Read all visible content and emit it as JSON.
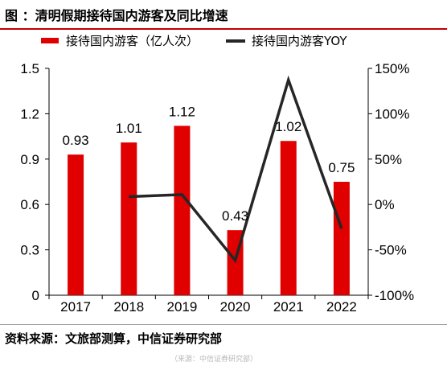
{
  "figure": {
    "title": "图 ：清明假期接待国内游客及同比增速",
    "source": "资料来源：文旅部测算，中信证券研究部",
    "watermark": "（来源：中信证券研究部）"
  },
  "colors": {
    "bar": "#e00000",
    "line": "#262626",
    "rule": "#c00000"
  },
  "chart_data": {
    "type": "bar",
    "categories": [
      "2017",
      "2018",
      "2019",
      "2020",
      "2021",
      "2022"
    ],
    "series": [
      {
        "name": "接待国内游客（亿人次）",
        "type": "bar",
        "axis": "left",
        "values": [
          0.93,
          1.01,
          1.12,
          0.43,
          1.02,
          0.75
        ],
        "labels": [
          "0.93",
          "1.01",
          "1.12",
          "0.43",
          "1.02",
          "0.75"
        ]
      },
      {
        "name": "接待国内游客YOY",
        "type": "line",
        "axis": "right",
        "values": [
          null,
          8.6,
          10.9,
          -61.6,
          137.2,
          -26.5
        ]
      }
    ],
    "y_left": {
      "ylim": [
        0,
        1.5
      ],
      "ticks": [
        0,
        0.3,
        0.6,
        0.9,
        1.2,
        1.5
      ],
      "tick_labels": [
        "0",
        "0.3",
        "0.6",
        "0.9",
        "1.2",
        "1.5"
      ]
    },
    "y_right": {
      "ylim": [
        -100,
        150
      ],
      "ticks": [
        -100,
        -50,
        0,
        50,
        100,
        150
      ],
      "tick_labels": [
        "-100%",
        "-50%",
        "0%",
        "50%",
        "100%",
        "150%"
      ]
    },
    "legend": {
      "position": "top"
    },
    "grid": false
  }
}
